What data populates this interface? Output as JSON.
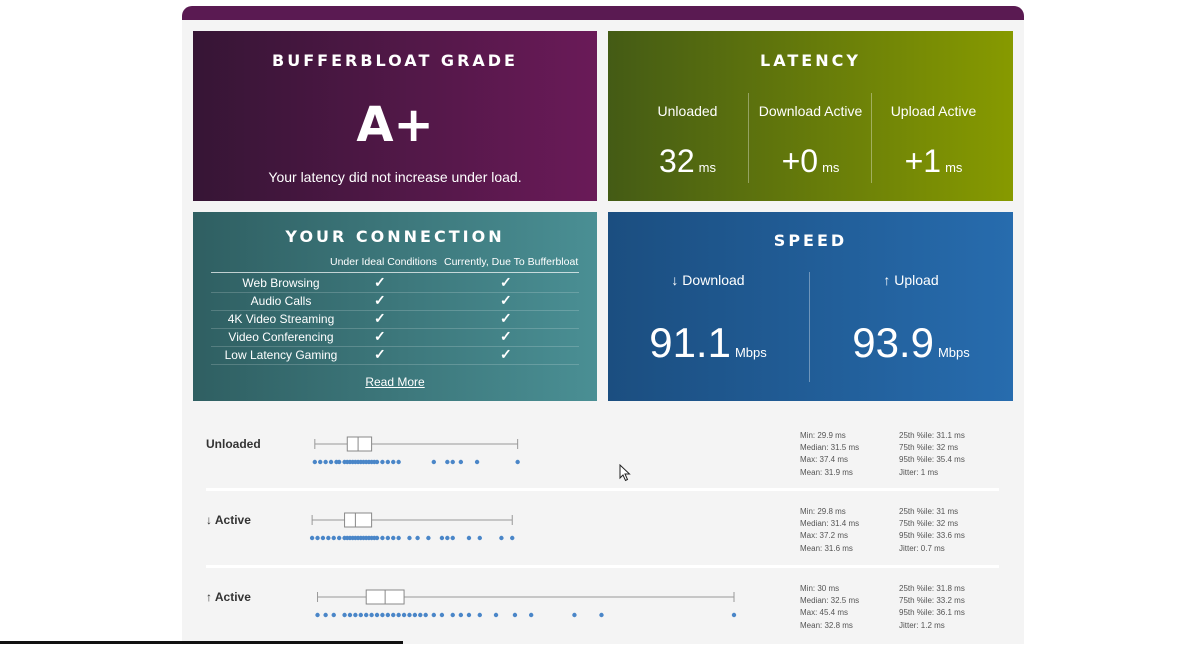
{
  "grade": {
    "title": "BUFFERBLOAT GRADE",
    "value": "A+",
    "description": "Your latency did not increase under load."
  },
  "latency": {
    "title": "LATENCY",
    "columns": [
      {
        "label": "Unloaded",
        "value": "32",
        "unit": "ms"
      },
      {
        "label": "Download Active",
        "value": "+0",
        "unit": "ms"
      },
      {
        "label": "Upload Active",
        "value": "+1",
        "unit": "ms"
      }
    ]
  },
  "connection": {
    "title": "YOUR CONNECTION",
    "header_ideal": "Under Ideal Conditions",
    "header_current": "Currently, Due To Bufferbloat",
    "check_glyph": "✓",
    "rows": [
      {
        "name": "Web Browsing",
        "ideal": true,
        "current": true
      },
      {
        "name": "Audio Calls",
        "ideal": true,
        "current": true
      },
      {
        "name": "4K Video Streaming",
        "ideal": true,
        "current": true
      },
      {
        "name": "Video Conferencing",
        "ideal": true,
        "current": true
      },
      {
        "name": "Low Latency Gaming",
        "ideal": true,
        "current": true
      }
    ],
    "read_more": "Read More"
  },
  "speed": {
    "title": "SPEED",
    "download": {
      "label": "↓ Download",
      "value": "91.1",
      "unit": "Mbps"
    },
    "upload": {
      "label": "↑ Upload",
      "value": "93.9",
      "unit": "Mbps"
    }
  },
  "plots": {
    "axis_max_ms": 45.4,
    "rows": [
      {
        "label": "Unloaded",
        "min": 29.9,
        "q1": 31.1,
        "median": 31.5,
        "q3": 32,
        "max": 37.4,
        "points": [
          29.9,
          30.1,
          30.3,
          30.5,
          30.7,
          30.8,
          31.0,
          31.1,
          31.2,
          31.3,
          31.4,
          31.5,
          31.6,
          31.7,
          31.8,
          31.9,
          32.0,
          32.1,
          32.2,
          32.4,
          32.6,
          32.8,
          33.0,
          34.3,
          34.8,
          35.0,
          35.3,
          35.9,
          37.4
        ],
        "stats_left": [
          "Min: 29.9 ms",
          "Median: 31.5 ms",
          "Max: 37.4 ms",
          "Mean: 31.9 ms"
        ],
        "stats_right": [
          "25th %ile: 31.1 ms",
          "75th %ile: 32 ms",
          "95th %ile: 35.4 ms",
          "Jitter: 1 ms"
        ]
      },
      {
        "label": "↓ Active",
        "min": 29.8,
        "q1": 31,
        "median": 31.4,
        "q3": 32,
        "max": 37.2,
        "points": [
          29.8,
          30.0,
          30.2,
          30.4,
          30.6,
          30.8,
          31.0,
          31.1,
          31.2,
          31.3,
          31.4,
          31.5,
          31.6,
          31.7,
          31.8,
          31.9,
          32.0,
          32.1,
          32.2,
          32.4,
          32.6,
          32.8,
          33.0,
          33.4,
          33.7,
          34.1,
          34.6,
          34.8,
          35.0,
          35.6,
          36.0,
          36.8,
          37.2
        ],
        "stats_left": [
          "Min: 29.8 ms",
          "Median: 31.4 ms",
          "Max: 37.2 ms",
          "Mean: 31.6 ms"
        ],
        "stats_right": [
          "25th %ile: 31 ms",
          "75th %ile: 32 ms",
          "95th %ile: 33.6 ms",
          "Jitter: 0.7 ms"
        ]
      },
      {
        "label": "↑ Active",
        "min": 30,
        "q1": 31.8,
        "median": 32.5,
        "q3": 33.2,
        "max": 45.4,
        "points": [
          30.0,
          30.3,
          30.6,
          31.0,
          31.2,
          31.4,
          31.6,
          31.8,
          32.0,
          32.2,
          32.4,
          32.6,
          32.8,
          33.0,
          33.2,
          33.4,
          33.6,
          33.8,
          34.0,
          34.3,
          34.6,
          35.0,
          35.3,
          35.6,
          36.0,
          36.6,
          37.3,
          37.9,
          39.5,
          40.5,
          45.4
        ],
        "stats_left": [
          "Min: 30 ms",
          "Median: 32.5 ms",
          "Max: 45.4 ms",
          "Mean: 32.8 ms"
        ],
        "stats_right": [
          "25th %ile: 31.8 ms",
          "75th %ile: 33.2 ms",
          "95th %ile: 36.1 ms",
          "Jitter: 1.2 ms"
        ]
      }
    ]
  }
}
